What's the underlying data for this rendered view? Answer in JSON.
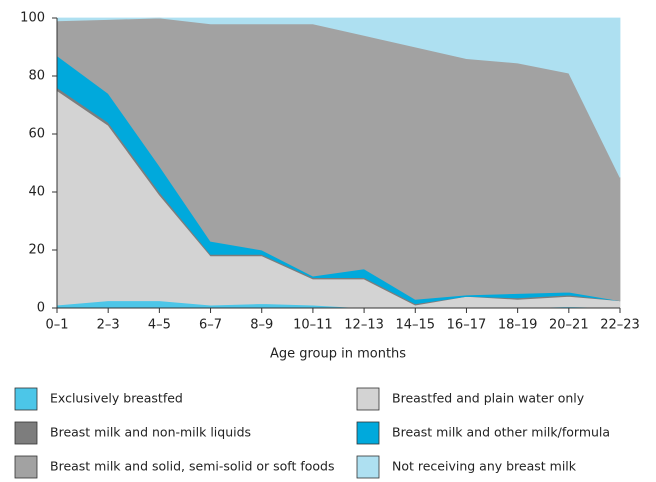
{
  "chart_data": {
    "type": "area",
    "stacked": true,
    "x_label": "Age group in months",
    "categories": [
      "0–1",
      "2–3",
      "4–5",
      "6–7",
      "8–9",
      "10–11",
      "12–13",
      "14–15",
      "16–17",
      "18–19",
      "20–21",
      "22–23"
    ],
    "ylim": [
      0,
      100
    ],
    "yticks": [
      0,
      20,
      40,
      60,
      80,
      100
    ],
    "series": [
      {
        "name": "Exclusively breastfed",
        "color": "#4cc6e8",
        "values": [
          1,
          2.5,
          2.5,
          1,
          1.5,
          1,
          0,
          0,
          0,
          0,
          0.5,
          0
        ]
      },
      {
        "name": "Breastfed and plain water only",
        "color": "#d3d3d3",
        "values": [
          74,
          60.5,
          36.5,
          17,
          16.5,
          9,
          10,
          1,
          4,
          3,
          3.5,
          2.5
        ]
      },
      {
        "name": "Breast milk and non-milk liquids",
        "color": "#7d7d7d",
        "values": [
          1,
          1,
          1,
          0.5,
          0.5,
          0.5,
          0.5,
          0.5,
          0,
          0.5,
          0.5,
          0
        ]
      },
      {
        "name": "Breast milk and other milk/formula",
        "color": "#00a9dc",
        "values": [
          11,
          10,
          9,
          4.5,
          1.5,
          0.5,
          3,
          1.5,
          0.5,
          1.5,
          1,
          0
        ]
      },
      {
        "name": "Breast milk and solid, semi-solid or soft foods",
        "color": "#a2a2a2",
        "values": [
          12,
          25.5,
          51,
          75,
          78,
          87,
          80.5,
          87,
          81.5,
          79.5,
          75.5,
          42.5
        ]
      },
      {
        "name": "Not receiving any breast milk",
        "color": "#aee0f1",
        "values": [
          1,
          0.5,
          0,
          2,
          2,
          2,
          6,
          10,
          14,
          15.5,
          19,
          55
        ]
      }
    ]
  }
}
